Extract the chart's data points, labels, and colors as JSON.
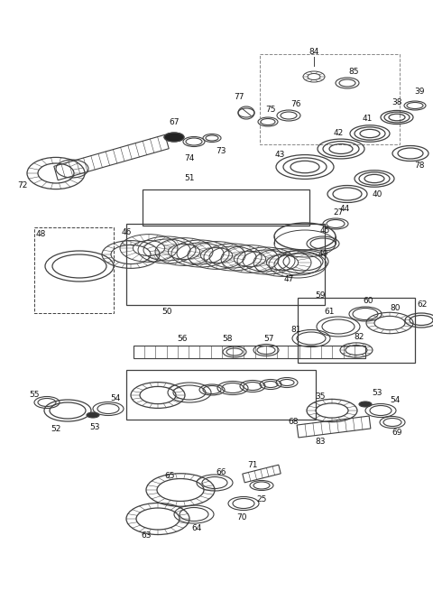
{
  "bg_color": "#ffffff",
  "fig_width": 4.8,
  "fig_height": 6.55,
  "dpi": 100,
  "line_color": "#404040",
  "label_color": "#111111",
  "label_fontsize": 6.5
}
